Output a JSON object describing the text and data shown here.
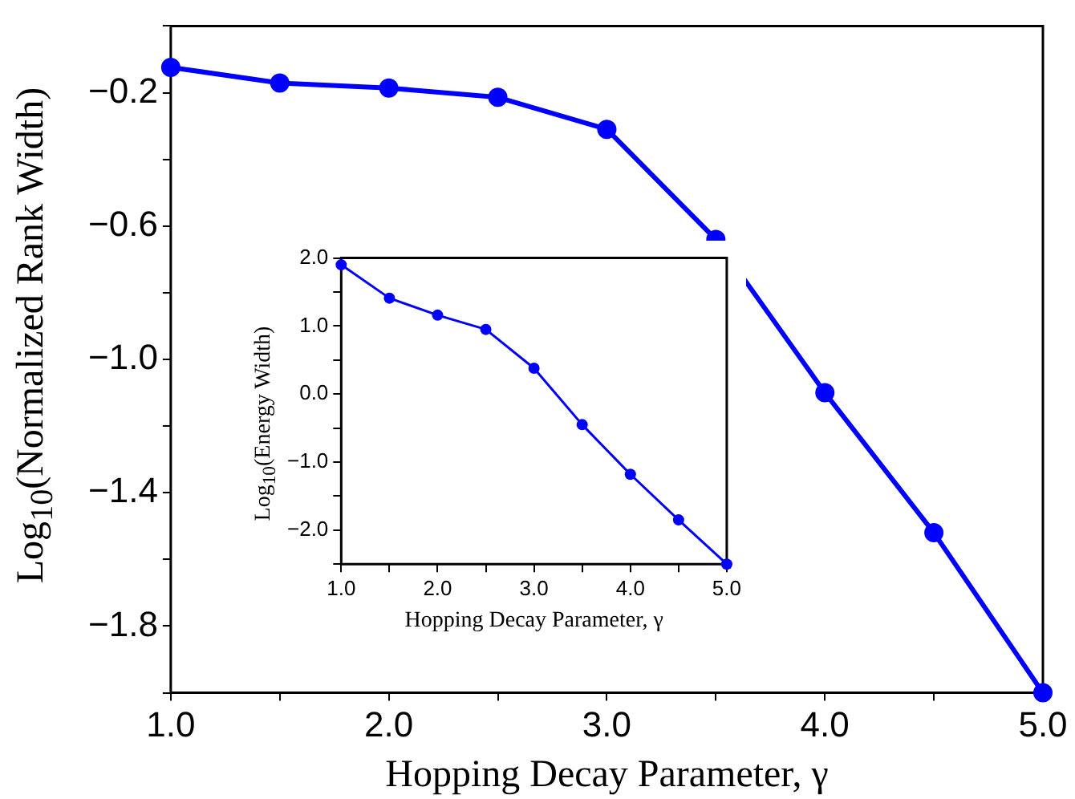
{
  "chart_data": [
    {
      "type": "line",
      "xlabel": "Hopping Decay Parameter, γ",
      "ylabel": "Log$_{10}$(Normalized Rank Width)",
      "x": [
        1.0,
        1.5,
        2.0,
        2.5,
        3.0,
        3.5,
        4.0,
        4.5,
        5.0
      ],
      "series": [
        {
          "color": "#0000ff",
          "values": [
            -0.124,
            -0.171,
            -0.186,
            -0.214,
            -0.31,
            -0.64,
            -1.1,
            -1.52,
            -2.0
          ]
        }
      ],
      "xlim": [
        1,
        5
      ],
      "ylim": [
        -2,
        0
      ],
      "marker": "circle",
      "xticks": [
        {
          "value": 1,
          "label": "1.0"
        },
        {
          "value": 1.5,
          "label": null
        },
        {
          "value": 2,
          "label": "2.0"
        },
        {
          "value": 2.5,
          "label": null
        },
        {
          "value": 3,
          "label": "3.0"
        },
        {
          "value": 3.5,
          "label": null
        },
        {
          "value": 4,
          "label": "4.0"
        },
        {
          "value": 4.5,
          "label": null
        },
        {
          "value": 5,
          "label": "5.0"
        }
      ],
      "yticks": [
        {
          "value": -2,
          "label": null
        },
        {
          "value": -1.8,
          "label": "−1.8"
        },
        {
          "value": -1.6,
          "label": null
        },
        {
          "value": -1.4,
          "label": "−1.4"
        },
        {
          "value": -1.2,
          "label": null
        },
        {
          "value": -1.0,
          "label": "−1.0"
        },
        {
          "value": -0.8,
          "label": null
        },
        {
          "value": -0.6,
          "label": "−0.6"
        },
        {
          "value": -0.4,
          "label": null
        },
        {
          "value": -0.2,
          "label": "−0.2"
        },
        {
          "value": 0,
          "label": null
        }
      ]
    },
    {
      "type": "line",
      "xlabel": "Hopping Decay Parameter, γ",
      "ylabel": "Log$_{10}$(Energy Width)",
      "x": [
        1.0,
        1.5,
        2.0,
        2.5,
        3.0,
        3.5,
        4.0,
        4.5,
        5.0
      ],
      "series": [
        {
          "color": "#0000ff",
          "values": [
            1.9,
            1.41,
            1.16,
            0.95,
            0.38,
            -0.45,
            -1.18,
            -1.85,
            -2.5
          ]
        }
      ],
      "xlim": [
        1,
        5
      ],
      "ylim": [
        -2.5,
        2
      ],
      "marker": "circle",
      "xticks": [
        {
          "value": 1,
          "label": "1.0"
        },
        {
          "value": 1.5,
          "label": null
        },
        {
          "value": 2,
          "label": "2.0"
        },
        {
          "value": 2.5,
          "label": null
        },
        {
          "value": 3,
          "label": "3.0"
        },
        {
          "value": 3.5,
          "label": null
        },
        {
          "value": 4,
          "label": "4.0"
        },
        {
          "value": 4.5,
          "label": null
        },
        {
          "value": 5,
          "label": "5.0"
        }
      ],
      "yticks": [
        {
          "value": -2.5,
          "label": null
        },
        {
          "value": -2,
          "label": "−2.0"
        },
        {
          "value": -1.5,
          "label": null
        },
        {
          "value": -1,
          "label": "−1.0"
        },
        {
          "value": -0.5,
          "label": null
        },
        {
          "value": 0,
          "label": "0.0"
        },
        {
          "value": 0.5,
          "label": null
        },
        {
          "value": 1,
          "label": "1.0"
        },
        {
          "value": 1.5,
          "label": null
        },
        {
          "value": 2,
          "label": "2.0"
        }
      ]
    }
  ]
}
